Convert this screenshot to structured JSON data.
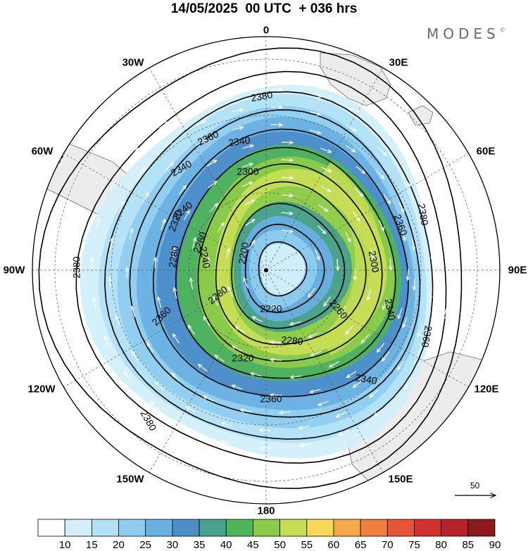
{
  "header": {
    "title": "14/05/2025  00 UTC  + 036 hrs",
    "brand": "MODES",
    "brand_mark": "©"
  },
  "map": {
    "projection": "polar-stereographic-south",
    "longitude_labels": [
      {
        "name": "lon-0",
        "text": "0"
      },
      {
        "name": "lon-30e",
        "text": "30E"
      },
      {
        "name": "lon-60e",
        "text": "60E"
      },
      {
        "name": "lon-90e",
        "text": "90E"
      },
      {
        "name": "lon-120e",
        "text": "120E"
      },
      {
        "name": "lon-150e",
        "text": "150E"
      },
      {
        "name": "lon-180",
        "text": "180"
      },
      {
        "name": "lon-150w",
        "text": "150W"
      },
      {
        "name": "lon-120w",
        "text": "120W"
      },
      {
        "name": "lon-90w",
        "text": "90W"
      },
      {
        "name": "lon-60w",
        "text": "60W"
      },
      {
        "name": "lon-30w",
        "text": "30W"
      }
    ],
    "contour_labels": [
      "2380",
      "2360",
      "2340",
      "2320",
      "2300",
      "2280",
      "2260",
      "2240",
      "2220",
      "2200"
    ],
    "reference_vector": "50",
    "colors": {
      "land": "#ececec",
      "coast": "#6e6e6e",
      "contour": "#000000",
      "wind_arrows": "#ffffff"
    }
  },
  "colorbar": {
    "labels": [
      "10",
      "15",
      "20",
      "25",
      "30",
      "35",
      "40",
      "45",
      "50",
      "55",
      "60",
      "65",
      "70",
      "75",
      "80",
      "85",
      "90"
    ],
    "colors": [
      "#ffffff",
      "#d2effb",
      "#b2e1f7",
      "#8fccee",
      "#6ab0e2",
      "#4d8ec9",
      "#48a08e",
      "#4fb45a",
      "#8ccb4a",
      "#c7dd55",
      "#f6d957",
      "#f4aa48",
      "#ef7f3c",
      "#e55535",
      "#d0332f",
      "#b8232a",
      "#8c1a1a"
    ]
  }
}
